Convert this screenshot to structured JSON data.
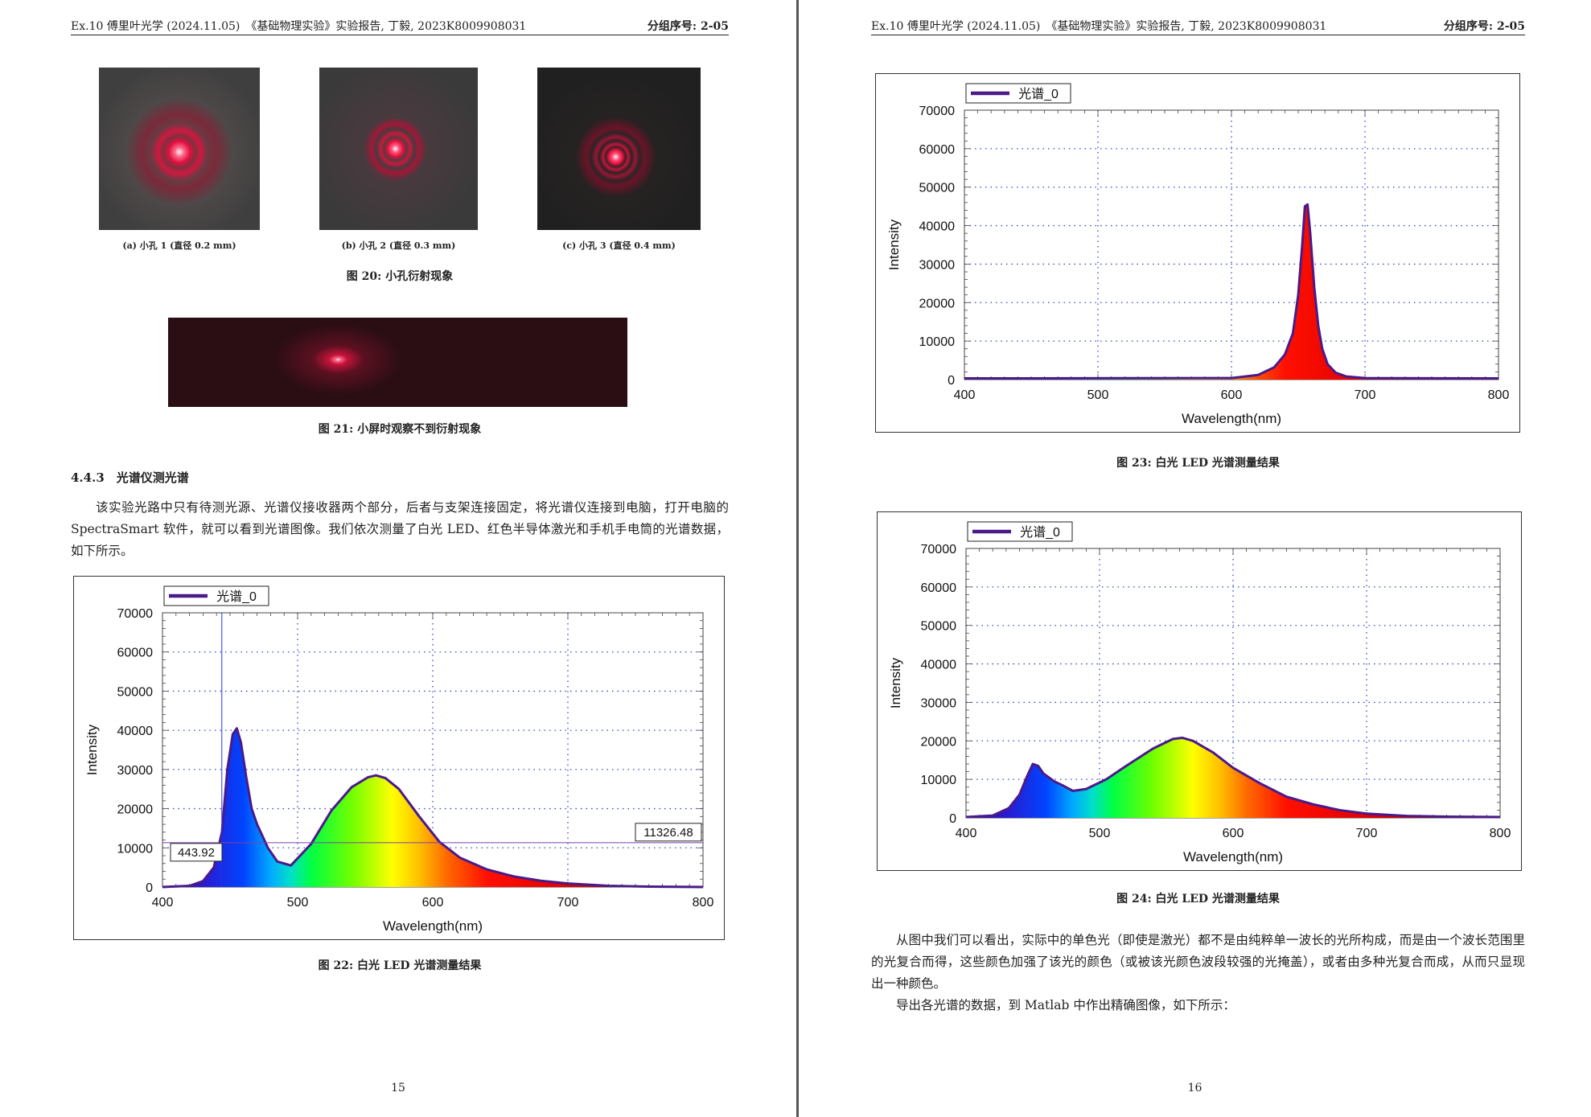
{
  "header": {
    "left": "Ex.10 傅里叶光学 (2024.11.05)　《基础物理实验》实验报告, 丁毅, 2023K8009908031",
    "right": "分组序号: 2-05"
  },
  "left_page": {
    "subcaptions": [
      "(a) 小孔 1 (直径 0.2 mm)",
      "(b) 小孔 2 (直径 0.3 mm)",
      "(c) 小孔 3 (直径 0.4 mm)"
    ],
    "fig20_caption": "图 20: 小孔衍射现象",
    "fig21_caption": "图 21: 小屏时观察不到衍射现象",
    "section_title": "4.4.3　光谱仪测光谱",
    "paragraph": "该实验光路中只有待测光源、光谱仪接收器两个部分，后者与支架连接固定，将光谱仪连接到电脑，打开电脑的 SpectraSmart 软件，就可以看到光谱图像。我们依次测量了白光 LED、红色半导体激光和手机手电筒的光谱数据，如下所示。",
    "fig22_caption": "图 22: 白光 LED 光谱测量结果",
    "page_number": "15"
  },
  "right_page": {
    "fig23_caption": "图 23: 白光 LED 光谱测量结果",
    "fig24_caption": "图 24: 白光 LED 光谱测量结果",
    "paragraph1": "从图中我们可以看出，实际中的单色光（即使是激光）都不是由纯粹单一波长的光所构成，而是由一个波长范围里的光复合而得，这些颜色加强了该光的颜色（或被该光颜色波段较强的光掩盖），或者由多种光复合而成，从而只显现出一种颜色。",
    "paragraph2": "导出各光谱的数据，到 Matlab 中作出精确图像，如下所示：",
    "page_number": "16"
  },
  "chart_data": [
    {
      "type": "area",
      "figure": "图 22",
      "legend": "光谱_0",
      "xlabel": "Wavelength(nm)",
      "ylabel": "Intensity",
      "xlim": [
        400,
        800
      ],
      "ylim": [
        0,
        70000
      ],
      "xticks": [
        400,
        500,
        600,
        700,
        800
      ],
      "yticks": [
        0,
        10000,
        20000,
        30000,
        40000,
        50000,
        60000,
        70000
      ],
      "grid": true,
      "legend_position": "top-left",
      "cursor": {
        "x": 443.92,
        "y": 11326.48,
        "x_label": "443.92",
        "y_label": "11326.48"
      },
      "x": [
        400,
        420,
        430,
        438,
        444,
        448,
        452,
        455,
        458,
        462,
        466,
        470,
        478,
        485,
        495,
        510,
        525,
        540,
        552,
        558,
        565,
        575,
        590,
        605,
        620,
        640,
        660,
        680,
        700,
        730,
        760,
        800
      ],
      "y": [
        0,
        300,
        1500,
        5000,
        14000,
        30000,
        39000,
        40500,
        37000,
        28000,
        20000,
        16000,
        10000,
        6500,
        5500,
        11000,
        19500,
        25500,
        28000,
        28500,
        27800,
        25000,
        18000,
        11500,
        7500,
        4500,
        2700,
        1600,
        900,
        300,
        100,
        0
      ]
    },
    {
      "type": "area",
      "figure": "图 23",
      "legend": "光谱_0",
      "xlabel": "Wavelength(nm)",
      "ylabel": "Intensity",
      "xlim": [
        400,
        800
      ],
      "ylim": [
        0,
        70000
      ],
      "xticks": [
        400,
        500,
        600,
        700,
        800
      ],
      "yticks": [
        0,
        10000,
        20000,
        30000,
        40000,
        50000,
        60000,
        70000
      ],
      "grid": true,
      "legend_position": "top-left",
      "x": [
        400,
        600,
        620,
        632,
        640,
        646,
        650,
        653,
        655,
        657,
        659,
        662,
        665,
        668,
        672,
        678,
        686,
        700,
        800
      ],
      "y": [
        300,
        400,
        1200,
        3200,
        6500,
        12000,
        22000,
        35000,
        45000,
        45500,
        38000,
        24000,
        14000,
        8000,
        4000,
        1800,
        800,
        400,
        300
      ]
    },
    {
      "type": "area",
      "figure": "图 24",
      "legend": "光谱_0",
      "xlabel": "Wavelength(nm)",
      "ylabel": "Intensity",
      "xlim": [
        400,
        800
      ],
      "ylim": [
        0,
        70000
      ],
      "xticks": [
        400,
        500,
        600,
        700,
        800
      ],
      "yticks": [
        0,
        10000,
        20000,
        30000,
        40000,
        50000,
        60000,
        70000
      ],
      "grid": true,
      "legend_position": "top-left",
      "x": [
        400,
        420,
        432,
        440,
        446,
        450,
        454,
        458,
        462,
        466,
        472,
        480,
        490,
        505,
        520,
        540,
        555,
        562,
        570,
        585,
        600,
        620,
        640,
        660,
        680,
        700,
        730,
        760,
        800
      ],
      "y": [
        200,
        600,
        2500,
        6000,
        11000,
        14000,
        13500,
        11500,
        10500,
        9500,
        8500,
        7000,
        7500,
        10000,
        13500,
        18000,
        20500,
        20800,
        20000,
        17000,
        13000,
        9000,
        5500,
        3500,
        2000,
        1100,
        500,
        300,
        200
      ]
    }
  ]
}
